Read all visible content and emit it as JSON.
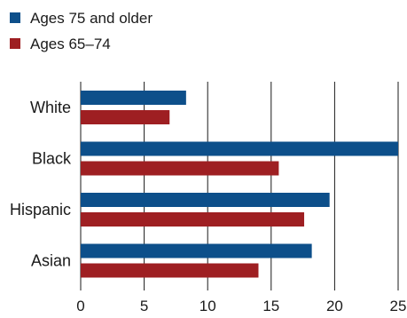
{
  "chart_data": {
    "type": "bar",
    "orientation": "horizontal",
    "title": "",
    "xlabel": "",
    "ylabel": "",
    "categories": [
      "White",
      "Black",
      "Hispanic",
      "Asian"
    ],
    "series": [
      {
        "name": "Ages 75 and older",
        "color": "#0d4f8a",
        "values": [
          8.3,
          25.0,
          19.6,
          18.2
        ]
      },
      {
        "name": "Ages 65–74",
        "color": "#9e1f22",
        "values": [
          7.0,
          15.6,
          17.6,
          14.0
        ]
      }
    ],
    "xlim": [
      0,
      25
    ],
    "xticks": [
      "0",
      "5",
      "10",
      "15",
      "20",
      "25"
    ],
    "grid": "vertical",
    "legend": "top-left"
  }
}
